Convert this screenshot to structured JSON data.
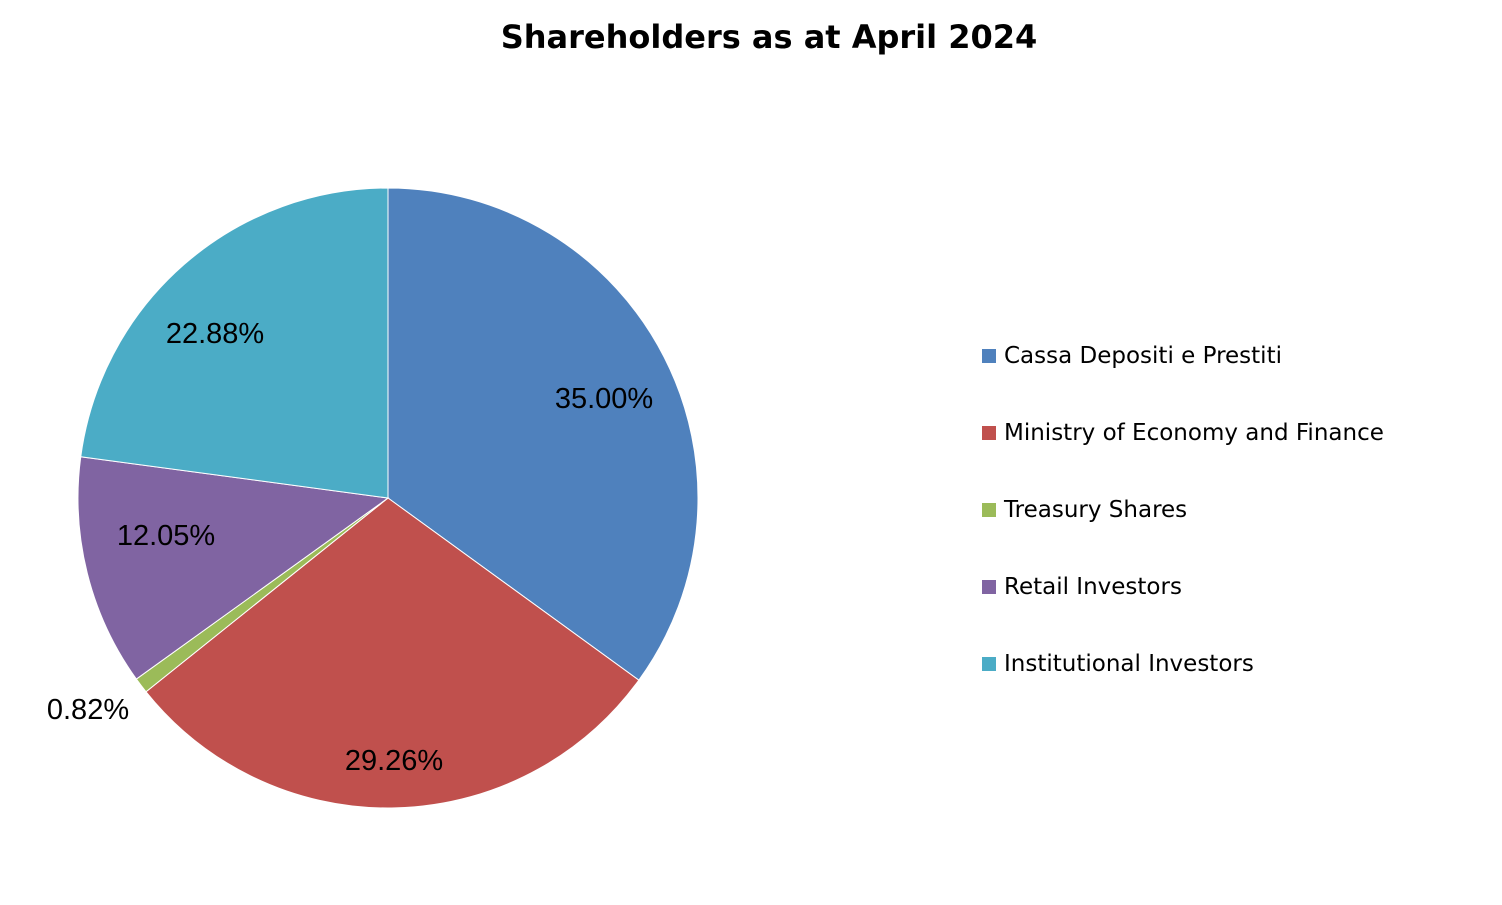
{
  "chart_data": {
    "type": "pie",
    "title": "Shareholders as at April 2024",
    "legend_position": "right",
    "slices": [
      {
        "label": "Cassa Depositi e Prestiti",
        "value": 35.0,
        "display": "35.00%",
        "color": "#4F81BD"
      },
      {
        "label": "Ministry of Economy and Finance",
        "value": 29.26,
        "display": "29.26%",
        "color": "#C0504D"
      },
      {
        "label": "Treasury Shares",
        "value": 0.82,
        "display": "0.82%",
        "color": "#9BBB59"
      },
      {
        "label": "Retail Investors",
        "value": 12.05,
        "display": "12.05%",
        "color": "#8064A2"
      },
      {
        "label": "Institutional Investors",
        "value": 22.88,
        "display": "22.88%",
        "color": "#4BACC6"
      }
    ]
  }
}
